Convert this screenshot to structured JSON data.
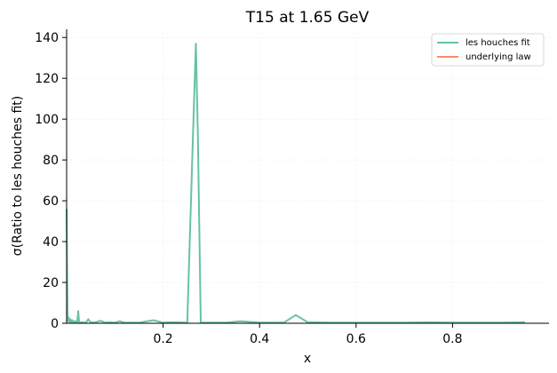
{
  "chart_data": {
    "type": "line",
    "title": "T15 at 1.65 GeV",
    "xlabel": "x",
    "ylabel": "σ(Ratio to les houches fit)",
    "xlim": [
      0.0,
      1.0
    ],
    "ylim": [
      0,
      144
    ],
    "xticks": [
      0.2,
      0.4,
      0.6,
      0.8
    ],
    "xtick_labels": [
      "0.2",
      "0.4",
      "0.6",
      "0.8"
    ],
    "yticks": [
      0,
      20,
      40,
      60,
      80,
      100,
      120,
      140
    ],
    "ytick_labels": [
      "0",
      "20",
      "40",
      "60",
      "80",
      "100",
      "120",
      "140"
    ],
    "grid": true,
    "legend_position": "top-right",
    "series": [
      {
        "name": "les houches fit",
        "color": "#66c2a5",
        "x": [
          0.0,
          0.002,
          0.004,
          0.006,
          0.008,
          0.01,
          0.012,
          0.014,
          0.016,
          0.018,
          0.02,
          0.022,
          0.024,
          0.026,
          0.03,
          0.035,
          0.04,
          0.045,
          0.05,
          0.06,
          0.07,
          0.08,
          0.09,
          0.1,
          0.11,
          0.12,
          0.15,
          0.18,
          0.2,
          0.22,
          0.25,
          0.262,
          0.268,
          0.272,
          0.278,
          0.285,
          0.3,
          0.33,
          0.36,
          0.4,
          0.45,
          0.475,
          0.5,
          0.55,
          0.6,
          0.7,
          0.75,
          0.8,
          0.9,
          0.95
        ],
        "y": [
          56,
          1,
          3,
          0.5,
          2,
          0.5,
          1.5,
          0.5,
          1,
          0.3,
          1,
          0.5,
          6,
          0.3,
          0.5,
          0.3,
          0.3,
          2,
          0.3,
          0.5,
          1.2,
          0.3,
          0.5,
          0.3,
          1,
          0.3,
          0.3,
          1.5,
          0.3,
          0.5,
          0.3,
          93,
          137,
          93,
          0.3,
          0.3,
          0.3,
          0.3,
          1,
          0.3,
          0.3,
          4,
          0.5,
          0.3,
          0.3,
          0.3,
          0.5,
          0.3,
          0.3,
          0.5
        ]
      },
      {
        "name": "underlying law",
        "color": "#fc8d62",
        "x": [],
        "y": []
      }
    ]
  }
}
